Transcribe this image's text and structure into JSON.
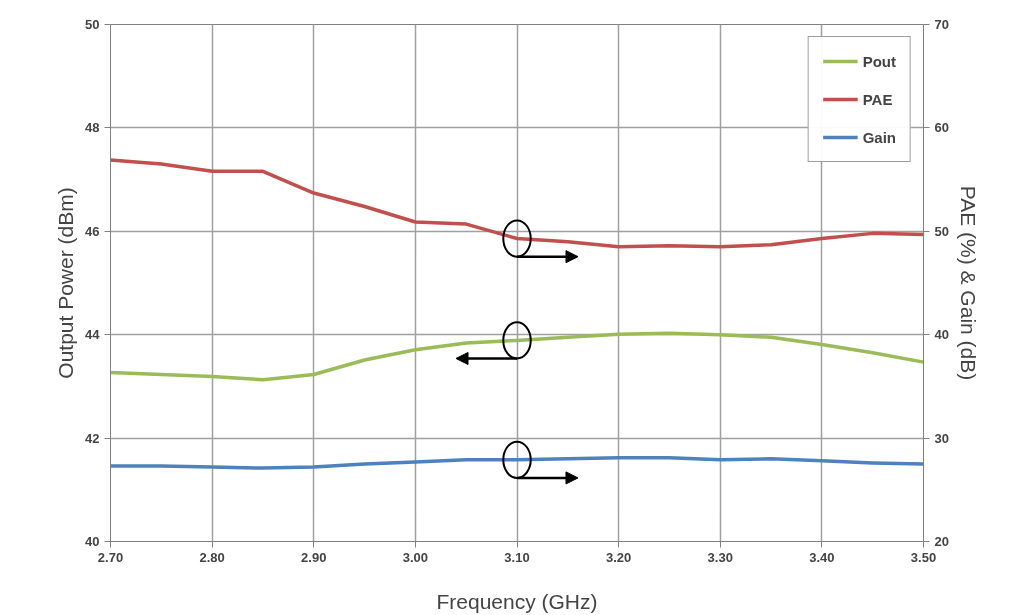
{
  "chart_data": {
    "type": "line",
    "xlabel": "Frequency (GHz)",
    "ylabel": "Output Power (dBm)",
    "y2label": "PAE (%) & Gain (dB)",
    "x": [
      2.7,
      2.75,
      2.8,
      2.85,
      2.9,
      2.95,
      3.0,
      3.05,
      3.1,
      3.15,
      3.2,
      3.25,
      3.3,
      3.35,
      3.4,
      3.45,
      3.5
    ],
    "series": [
      {
        "name": "Pout",
        "color": "#9bbb59",
        "values": [
          43.27,
          43.23,
          43.19,
          43.13,
          43.23,
          43.51,
          43.71,
          43.84,
          43.89,
          43.95,
          44.01,
          44.03,
          44.0,
          43.95,
          43.81,
          43.65,
          43.47
        ]
      },
      {
        "name": "PAE",
        "color": "#c0504d",
        "axis": "y2",
        "values": [
          56.9,
          56.5,
          55.8,
          55.8,
          53.7,
          52.4,
          50.9,
          50.7,
          49.3,
          49.0,
          48.5,
          48.6,
          48.5,
          48.7,
          49.3,
          49.8,
          49.7
        ]
      },
      {
        "name": "Gain",
        "color": "#4f81bd",
        "axis": "y2",
        "values": [
          27.3,
          27.3,
          27.2,
          27.1,
          27.2,
          27.5,
          27.7,
          27.9,
          27.9,
          28.0,
          28.1,
          28.1,
          27.9,
          28.0,
          27.8,
          27.6,
          27.5
        ]
      }
    ],
    "xlim": [
      2.7,
      3.5
    ],
    "xticks": [
      {
        "value": 2.7,
        "label": "2.70"
      },
      {
        "value": 2.8,
        "label": "2.80"
      },
      {
        "value": 2.9,
        "label": "2.90"
      },
      {
        "value": 3.0,
        "label": "3.00"
      },
      {
        "value": 3.1,
        "label": "3.10"
      },
      {
        "value": 3.2,
        "label": "3.20"
      },
      {
        "value": 3.3,
        "label": "3.30"
      },
      {
        "value": 3.4,
        "label": "3.40"
      },
      {
        "value": 3.5,
        "label": "3.50"
      }
    ],
    "ylim": [
      40,
      50
    ],
    "yticks": [
      40,
      42,
      44,
      46,
      48,
      50
    ],
    "y2lim": [
      20,
      70
    ],
    "y2ticks": [
      20,
      30,
      40,
      50,
      60,
      70
    ],
    "grid": true,
    "legend": "top right",
    "marker": "none",
    "line_style": "solid"
  }
}
